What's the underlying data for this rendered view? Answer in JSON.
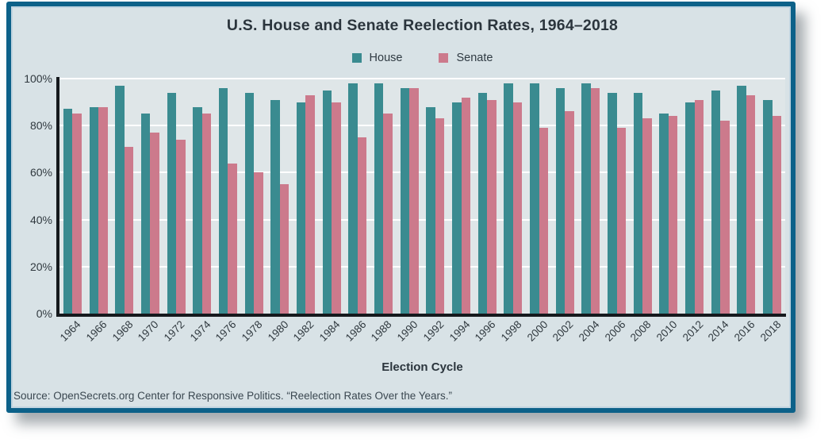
{
  "figure": {
    "title": "U.S. House and Senate Reelection Rates, 1964–2018",
    "xlabel": "Election Cycle",
    "source": "Source: OpenSecrets.org Center for Responsive Politics. “Reelection Rates Over the Years.”"
  },
  "colors": {
    "panel_border": "#0c6189",
    "panel_background": "#d8e2e6",
    "plot_background": "#dfe6e8",
    "gridline": "#ffffff",
    "axis": "#15191d",
    "house": "#3a8b90",
    "senate": "#cc7a8c"
  },
  "chart_data": {
    "type": "bar",
    "title": "U.S. House and Senate Reelection Rates, 1964–2018",
    "xlabel": "Election Cycle",
    "ylabel": "",
    "ylim": [
      0,
      100
    ],
    "yticks": [
      0,
      20,
      40,
      60,
      80,
      100
    ],
    "ytick_suffix": "%",
    "grid": true,
    "legend_position": "top-center",
    "categories": [
      "1964",
      "1966",
      "1968",
      "1970",
      "1972",
      "1974",
      "1976",
      "1978",
      "1980",
      "1982",
      "1984",
      "1986",
      "1988",
      "1990",
      "1992",
      "1994",
      "1996",
      "1998",
      "2000",
      "2002",
      "2004",
      "2006",
      "2008",
      "2010",
      "2012",
      "2014",
      "2016",
      "2018"
    ],
    "series": [
      {
        "name": "House",
        "color": "#3a8b90",
        "values": [
          87,
          88,
          97,
          85,
          94,
          88,
          96,
          94,
          91,
          90,
          95,
          98,
          98,
          96,
          88,
          90,
          94,
          98,
          98,
          96,
          98,
          94,
          94,
          85,
          90,
          95,
          97,
          91
        ]
      },
      {
        "name": "Senate",
        "color": "#cc7a8c",
        "values": [
          85,
          88,
          71,
          77,
          74,
          85,
          64,
          60,
          55,
          93,
          90,
          75,
          85,
          96,
          83,
          92,
          91,
          90,
          79,
          86,
          96,
          79,
          83,
          84,
          91,
          82,
          93,
          84
        ]
      }
    ]
  }
}
